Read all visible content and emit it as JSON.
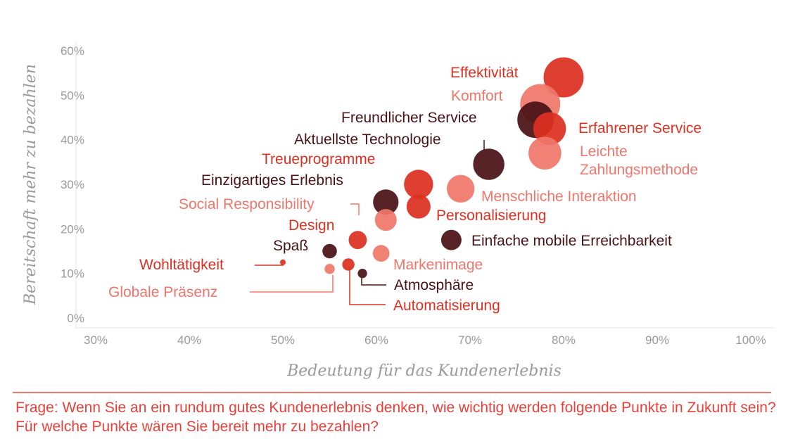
{
  "chart_data": {
    "type": "scatter",
    "title": "",
    "xlabel": "Bedeutung für das Kundenerlebnis",
    "ylabel": "Bereitschaft mehr zu bezahlen",
    "xlim": [
      30,
      100
    ],
    "ylim": [
      0,
      60
    ],
    "x_ticks": [
      "30%",
      "40%",
      "50%",
      "60%",
      "70%",
      "80%",
      "90%",
      "100%"
    ],
    "y_ticks": [
      "0%",
      "10%",
      "20%",
      "30%",
      "40%",
      "50%",
      "60%"
    ],
    "grid": false,
    "colors": {
      "red": "#dd3021",
      "salmon": "#f0766b",
      "dark": "#4a1216",
      "gray": "#9a9a9a"
    },
    "points": [
      {
        "label": "Effektivität",
        "x": 80,
        "y": 54,
        "size": 5,
        "color": "red"
      },
      {
        "label": "Komfort",
        "x": 77.5,
        "y": 48,
        "size": 5,
        "color": "salmon"
      },
      {
        "label": "Freundlicher Service",
        "x": 77,
        "y": 44.5,
        "size": 4.5,
        "color": "dark"
      },
      {
        "label": "Erfahrener Service",
        "x": 78.5,
        "y": 42.5,
        "size": 4,
        "color": "red"
      },
      {
        "label": "Leichte Zahlungsmethode",
        "x": 78,
        "y": 37,
        "size": 4,
        "color": "salmon"
      },
      {
        "label": "Aktuellste Technologie",
        "x": 72,
        "y": 34.5,
        "size": 3.8,
        "color": "dark"
      },
      {
        "label": "Treueprogramme",
        "x": 64.5,
        "y": 30,
        "size": 3.5,
        "color": "red"
      },
      {
        "label": "Menschliche Interaktion",
        "x": 69,
        "y": 29,
        "size": 3.3,
        "color": "salmon"
      },
      {
        "label": "Einzigartiges Erlebnis",
        "x": 61,
        "y": 26,
        "size": 3,
        "color": "dark"
      },
      {
        "label": "Personalisierung",
        "x": 64.5,
        "y": 25,
        "size": 2.8,
        "color": "red"
      },
      {
        "label": "Social Responsibility",
        "x": 61,
        "y": 22,
        "size": 2.5,
        "color": "salmon"
      },
      {
        "label": "Einfache mobile Erreichbarkeit",
        "x": 68,
        "y": 17.5,
        "size": 2.3,
        "color": "dark"
      },
      {
        "label": "Design",
        "x": 58,
        "y": 17.5,
        "size": 2,
        "color": "red"
      },
      {
        "label": "Spaß",
        "x": 55,
        "y": 15,
        "size": 1.5,
        "color": "dark"
      },
      {
        "label": "Markenimage",
        "x": 60.5,
        "y": 14.5,
        "size": 1.8,
        "color": "salmon"
      },
      {
        "label": "Wohltätigkeit",
        "x": 50,
        "y": 12.5,
        "size": 0.3,
        "color": "red"
      },
      {
        "label": "Automatisierung",
        "x": 57,
        "y": 12,
        "size": 1.2,
        "color": "red"
      },
      {
        "label": "Globale Präsenz",
        "x": 55,
        "y": 11,
        "size": 0.9,
        "color": "salmon"
      },
      {
        "label": "Atmosphäre",
        "x": 58.5,
        "y": 10,
        "size": 0.8,
        "color": "dark"
      }
    ]
  },
  "footer": {
    "question": "Frage: Wenn Sie an ein rundum gutes Kundenerlebnis denken, wie wichtig werden folgende Punkte in Zukunft sein? Für welche Punkte wären Sie bereit mehr zu bezahlen?"
  }
}
